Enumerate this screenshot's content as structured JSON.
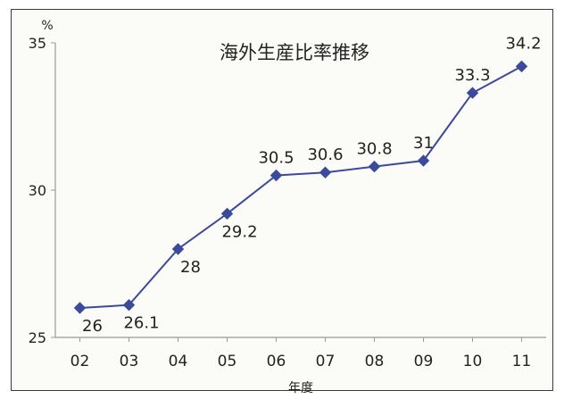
{
  "chart_data": {
    "type": "line",
    "title": "海外生産比率推移",
    "xlabel": "年度",
    "ylabel": "%",
    "categories": [
      "02",
      "03",
      "04",
      "05",
      "06",
      "07",
      "08",
      "09",
      "10",
      "11"
    ],
    "values": [
      26,
      26.1,
      28,
      29.2,
      30.5,
      30.6,
      30.8,
      31,
      33.3,
      34.2
    ],
    "data_labels": [
      "26",
      "26.1",
      "28",
      "29.2",
      "30.5",
      "30.6",
      "30.8",
      "31",
      "33.3",
      "34.2"
    ],
    "y_ticks": [
      "25",
      "30",
      "35"
    ],
    "ylim": [
      25,
      35
    ],
    "grid": false,
    "marker": "diamond",
    "colors": {
      "line": "#3b4a9a",
      "marker": "#3b4a9a",
      "axis": "#9a9a9a",
      "text": "#222222",
      "frame": "#3a3a3a"
    }
  }
}
